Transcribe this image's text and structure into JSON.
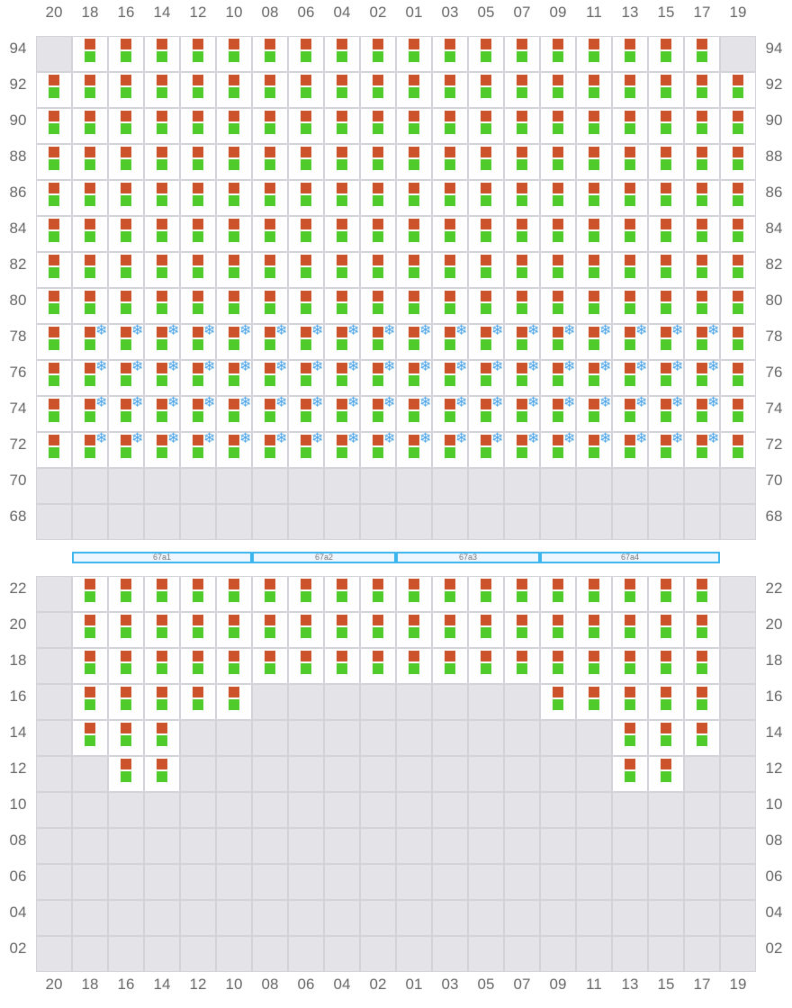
{
  "columns": [
    "20",
    "18",
    "16",
    "14",
    "12",
    "10",
    "08",
    "06",
    "04",
    "02",
    "01",
    "03",
    "05",
    "07",
    "09",
    "11",
    "13",
    "15",
    "17",
    "19"
  ],
  "upper": {
    "rows": [
      "94",
      "92",
      "90",
      "88",
      "86",
      "84",
      "82",
      "80",
      "78",
      "76",
      "74",
      "72",
      "70",
      "68"
    ],
    "occupied": {
      "94": [
        "18",
        "16",
        "14",
        "12",
        "10",
        "08",
        "06",
        "04",
        "02",
        "01",
        "03",
        "05",
        "07",
        "09",
        "11",
        "13",
        "15",
        "17"
      ],
      "92": "all",
      "90": "all",
      "88": "all",
      "86": "all",
      "84": "all",
      "82": "all",
      "80": "all",
      "78": "all",
      "76": "all",
      "74": "all",
      "72": "all"
    },
    "reefer_rows": [
      "78",
      "76",
      "74",
      "72"
    ],
    "reefer_columns": [
      "18",
      "16",
      "14",
      "12",
      "10",
      "08",
      "06",
      "04",
      "02",
      "01",
      "03",
      "05",
      "07",
      "09",
      "11",
      "13",
      "15",
      "17"
    ]
  },
  "hatch_covers": [
    {
      "label": "67a1",
      "from": "18",
      "to": "10"
    },
    {
      "label": "67a2",
      "from": "08",
      "to": "02"
    },
    {
      "label": "67a3",
      "from": "01",
      "to": "07"
    },
    {
      "label": "67a4",
      "from": "09",
      "to": "17"
    }
  ],
  "lower": {
    "rows": [
      "22",
      "20",
      "18",
      "16",
      "14",
      "12",
      "10",
      "08",
      "06",
      "04",
      "02"
    ],
    "occupied": {
      "22": [
        "18",
        "16",
        "14",
        "12",
        "10",
        "08",
        "06",
        "04",
        "02",
        "01",
        "03",
        "05",
        "07",
        "09",
        "11",
        "13",
        "15",
        "17"
      ],
      "20": [
        "18",
        "16",
        "14",
        "12",
        "10",
        "08",
        "06",
        "04",
        "02",
        "01",
        "03",
        "05",
        "07",
        "09",
        "11",
        "13",
        "15",
        "17"
      ],
      "18": [
        "18",
        "16",
        "14",
        "12",
        "10",
        "08",
        "06",
        "04",
        "02",
        "01",
        "03",
        "05",
        "07",
        "09",
        "11",
        "13",
        "15",
        "17"
      ],
      "16": [
        "18",
        "16",
        "14",
        "12",
        "10",
        "09",
        "11",
        "13",
        "15",
        "17"
      ],
      "14": [
        "18",
        "16",
        "14",
        "13",
        "15",
        "17"
      ],
      "12": [
        "16",
        "14",
        "13",
        "15"
      ]
    }
  },
  "colors": {
    "container_top": "#cc522b",
    "container_bottom": "#4fcc2b",
    "reefer": "#4aa3e8",
    "hatch": "#3db6ee",
    "empty_slot": "#e4e4e8"
  },
  "reefer_icon": "snowflake-icon",
  "reefer_glyph": "❄"
}
